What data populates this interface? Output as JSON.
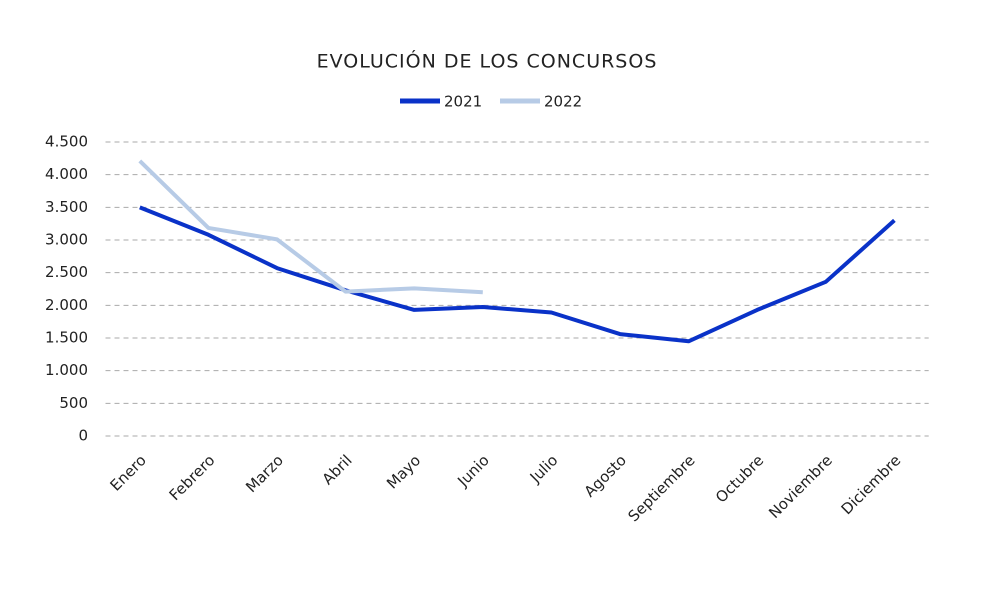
{
  "chart_data": {
    "type": "line",
    "title": "EVOLUCIÓN DE LOS CONCURSOS",
    "categories": [
      "Enero",
      "Febrero",
      "Marzo",
      "Abril",
      "Mayo",
      "Junio",
      "Julio",
      "Agosto",
      "Septiembre",
      "Octubre",
      "Noviembre",
      "Diciembre"
    ],
    "series": [
      {
        "name": "2021",
        "color": "#0a32c8",
        "values": [
          3500,
          3080,
          2570,
          2230,
          1930,
          1975,
          1890,
          1560,
          1450,
          1930,
          2360,
          3300
        ]
      },
      {
        "name": "2022",
        "color": "#b7cbe6",
        "values": [
          4210,
          3185,
          3010,
          2210,
          2260,
          2200,
          null,
          null,
          null,
          null,
          null,
          null
        ]
      }
    ],
    "ylim": [
      0,
      4500
    ],
    "yticks": [
      0,
      500,
      {
        "value": 1000,
        "label": "1.000"
      },
      {
        "value": 1500,
        "label": "1.500"
      },
      {
        "value": 2000,
        "label": "2.000"
      },
      {
        "value": 2500,
        "label": "2.500"
      },
      {
        "value": 3000,
        "label": "3.000"
      },
      {
        "value": 3500,
        "label": "3.500"
      },
      {
        "value": 4000,
        "label": "4.000"
      },
      {
        "value": 4500,
        "label": "4.500"
      }
    ],
    "grid": true,
    "legend": "top"
  }
}
